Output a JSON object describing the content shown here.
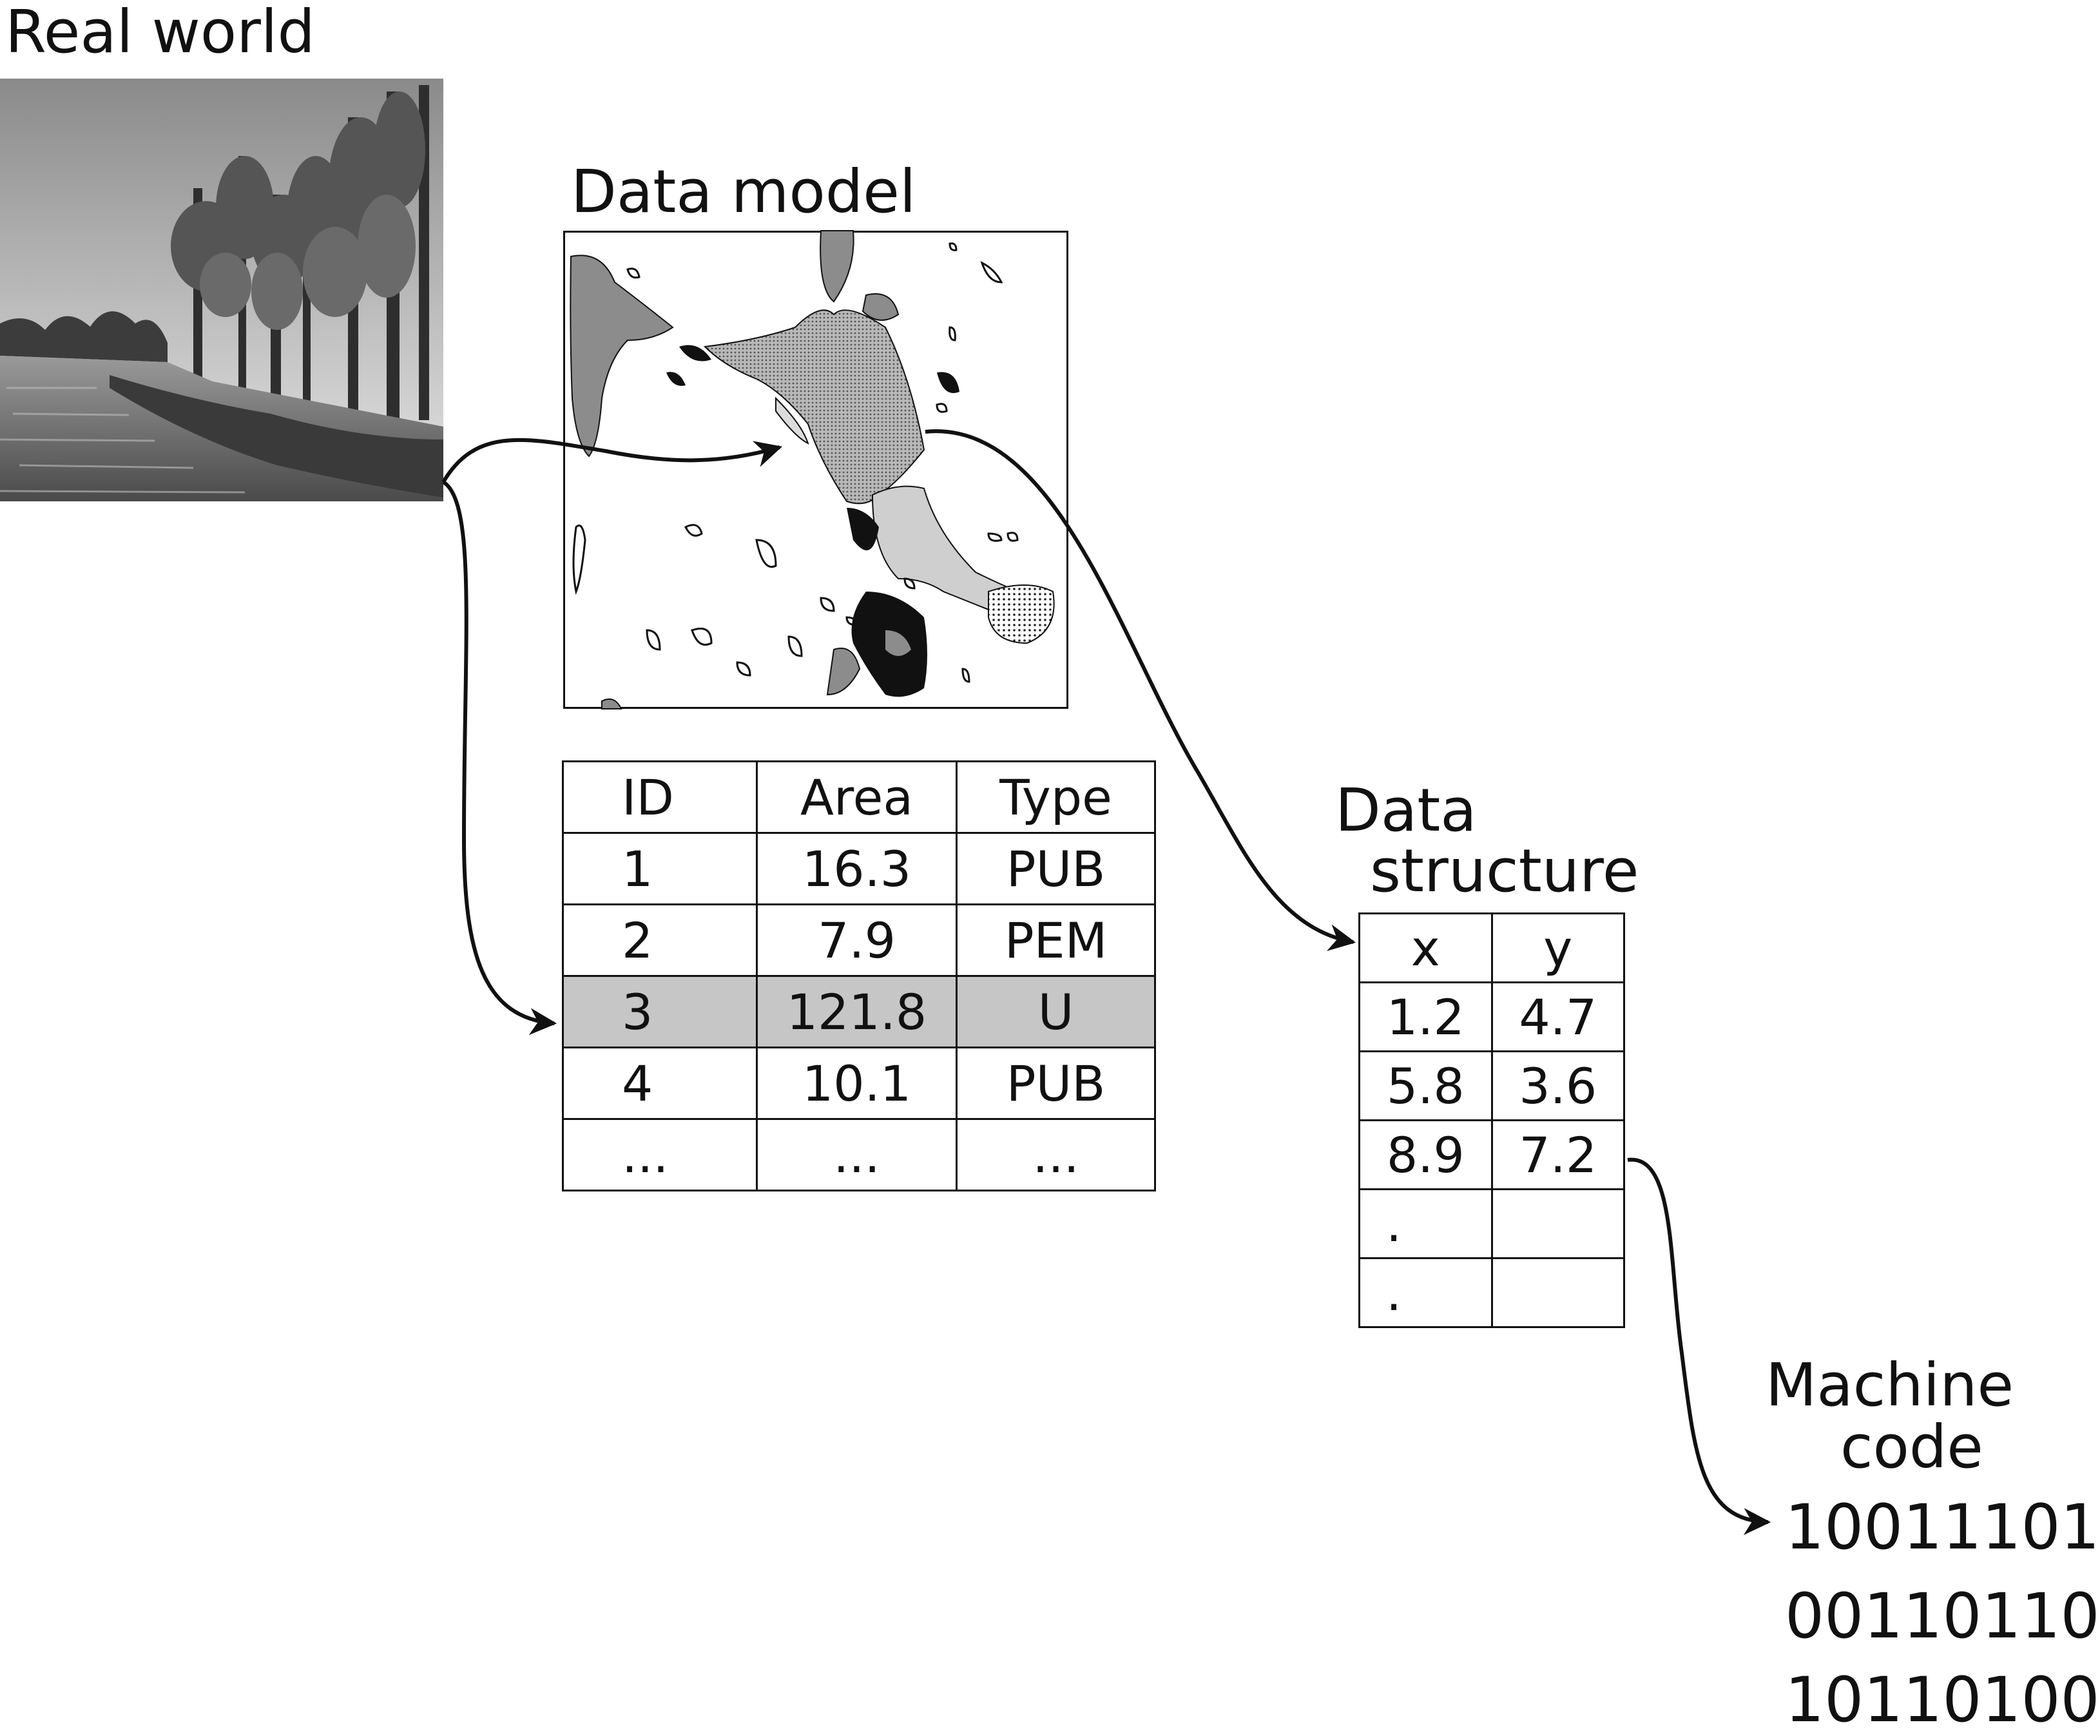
{
  "labels": {
    "real_world": "Real world",
    "data_model": "Data model",
    "data_structure_line1": "Data",
    "data_structure_line2": "structure",
    "machine_code_line1": "Machine",
    "machine_code_line2": "code"
  },
  "attribute_table": {
    "headers": [
      "ID",
      "Area",
      "Type"
    ],
    "rows": [
      [
        "1",
        "16.3",
        "PUB"
      ],
      [
        "2",
        "7.9",
        "PEM"
      ],
      [
        "3",
        "121.8",
        "U"
      ],
      [
        "4",
        "10.1",
        "PUB"
      ],
      [
        "...",
        "...",
        "..."
      ]
    ],
    "highlight_color": "#c6c6c6"
  },
  "coordinate_table": {
    "headers": [
      "x",
      "y"
    ],
    "rows": [
      [
        "1.2",
        "4.7"
      ],
      [
        "5.8",
        "3.6"
      ],
      [
        "8.9",
        "7.2"
      ],
      [
        ".",
        ""
      ],
      [
        ".",
        ""
      ]
    ]
  },
  "machine_code": [
    "10011101",
    "00110110",
    "10110100"
  ],
  "images": {
    "real_world_photo": "swamp-photo",
    "data_model_map": "wetland-map"
  }
}
